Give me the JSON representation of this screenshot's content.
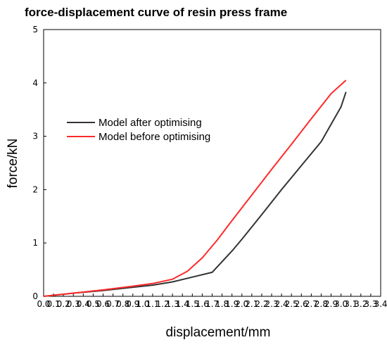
{
  "chart_data": {
    "type": "line",
    "title": "force-displacement curve of resin press frame",
    "xlabel": "displacement/mm",
    "ylabel": "force/kN",
    "xlim": [
      0.0,
      3.4
    ],
    "ylim": [
      0,
      5
    ],
    "x_ticks": [
      0.0,
      0.1,
      0.2,
      0.3,
      0.4,
      0.5,
      0.6,
      0.7,
      0.8,
      0.9,
      1.0,
      1.1,
      1.2,
      1.3,
      1.4,
      1.5,
      1.6,
      1.7,
      1.8,
      1.9,
      2.0,
      2.1,
      2.2,
      2.3,
      2.4,
      2.5,
      2.6,
      2.7,
      2.8,
      2.9,
      3.0,
      3.1,
      3.2,
      3.3,
      3.4
    ],
    "x_tick_labels": [
      "0.0",
      "0.1",
      "0.2",
      "0.3",
      "0.4",
      "0.5",
      "0.6",
      "0.7",
      "0.8",
      "0.9",
      "1.0",
      "1.1",
      "1.2",
      "1.3",
      "1.4",
      "1.5",
      "1.6",
      "1.7",
      "1.8",
      "1.9",
      "2.0",
      "2.1",
      "2.2",
      "2.3",
      "2.4",
      "2.5",
      "2.6",
      "2.7",
      "2.8",
      "2.9",
      "3.0",
      "3.1",
      "3.2",
      "3.3",
      "3.4"
    ],
    "y_ticks": [
      0,
      1,
      2,
      3,
      4,
      5
    ],
    "y_tick_labels": [
      "0",
      "1",
      "2",
      "3",
      "4",
      "5"
    ],
    "grid": false,
    "legend_position": "upper-left",
    "series": [
      {
        "name": "Model after optimising",
        "color": "#333333",
        "x": [
          0.0,
          0.3,
          0.6,
          0.9,
          1.1,
          1.3,
          1.5,
          1.7,
          1.9,
          2.0,
          2.2,
          2.4,
          2.6,
          2.8,
          3.0,
          3.05
        ],
        "y": [
          0.0,
          0.06,
          0.11,
          0.17,
          0.21,
          0.27,
          0.36,
          0.45,
          0.85,
          1.07,
          1.53,
          2.0,
          2.45,
          2.9,
          3.55,
          3.83
        ]
      },
      {
        "name": "Model before optimising",
        "color": "#ff2a2a",
        "x": [
          0.0,
          0.3,
          0.6,
          0.9,
          1.1,
          1.3,
          1.45,
          1.6,
          1.75,
          1.9,
          2.1,
          2.3,
          2.5,
          2.7,
          2.9,
          3.05
        ],
        "y": [
          0.0,
          0.06,
          0.12,
          0.19,
          0.24,
          0.32,
          0.47,
          0.72,
          1.05,
          1.42,
          1.9,
          2.38,
          2.85,
          3.33,
          3.8,
          4.05
        ]
      }
    ]
  }
}
